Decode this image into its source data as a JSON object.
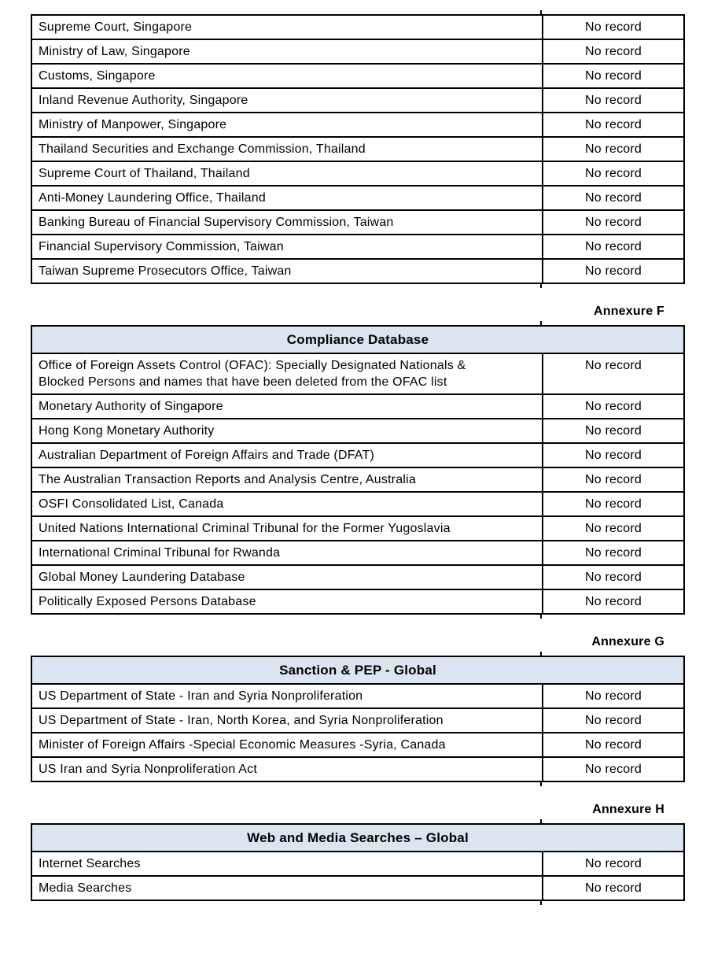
{
  "colors": {
    "page_bg": "#ffffff",
    "header_bg": "#dbe5f1",
    "border": "#000000",
    "text": "#000000"
  },
  "tables": [
    {
      "annexure": "",
      "title": "",
      "rows": [
        {
          "source": "Supreme Court, Singapore",
          "result": "No record"
        },
        {
          "source": "Ministry of Law, Singapore",
          "result": "No record"
        },
        {
          "source": "Customs, Singapore",
          "result": "No record"
        },
        {
          "source": "Inland Revenue Authority, Singapore",
          "result": "No record"
        },
        {
          "source": "Ministry of Manpower, Singapore",
          "result": "No record"
        },
        {
          "source": "Thailand Securities and Exchange Commission, Thailand",
          "result": "No record"
        },
        {
          "source": "Supreme Court of Thailand, Thailand",
          "result": "No record"
        },
        {
          "source": "Anti-Money Laundering Office, Thailand",
          "result": "No record"
        },
        {
          "source": "Banking Bureau of Financial Supervisory Commission, Taiwan",
          "result": "No record"
        },
        {
          "source": "Financial Supervisory Commission, Taiwan",
          "result": "No record"
        },
        {
          "source": "Taiwan Supreme Prosecutors Office, Taiwan",
          "result": "No record"
        }
      ]
    },
    {
      "annexure": "Annexure F",
      "title": "Compliance Database",
      "rows": [
        {
          "source": "Office of Foreign Assets Control (OFAC): Specially Designated Nationals & Blocked Persons and names that have been deleted from the OFAC list",
          "result": "No record"
        },
        {
          "source": "Monetary Authority of Singapore",
          "result": "No record"
        },
        {
          "source": "Hong Kong Monetary Authority",
          "result": "No record"
        },
        {
          "source": "Australian Department of Foreign Affairs and Trade (DFAT)",
          "result": "No record"
        },
        {
          "source": "The Australian Transaction Reports and Analysis Centre, Australia",
          "result": "No record"
        },
        {
          "source": "OSFI Consolidated List, Canada",
          "result": "No record"
        },
        {
          "source": "United Nations International Criminal Tribunal for the Former Yugoslavia",
          "result": "No record"
        },
        {
          "source": "International Criminal Tribunal for Rwanda",
          "result": "No record"
        },
        {
          "source": "Global Money Laundering Database",
          "result": "No record"
        },
        {
          "source": "Politically Exposed Persons Database",
          "result": "No record"
        }
      ]
    },
    {
      "annexure": "Annexure G",
      "title": "Sanction & PEP - Global",
      "rows": [
        {
          "source": "US Department of State - Iran and Syria Nonproliferation",
          "result": "No record"
        },
        {
          "source": "US Department of State - Iran, North Korea, and Syria Nonproliferation",
          "result": "No record"
        },
        {
          "source": "Minister of Foreign Affairs -Special Economic Measures -Syria, Canada",
          "result": "No record"
        },
        {
          "source": "US Iran and Syria Nonproliferation Act",
          "result": "No record"
        }
      ]
    },
    {
      "annexure": "Annexure H",
      "title": "Web and Media Searches – Global",
      "rows": [
        {
          "source": "Internet Searches",
          "result": "No record"
        },
        {
          "source": "Media Searches",
          "result": "No record"
        }
      ]
    }
  ]
}
